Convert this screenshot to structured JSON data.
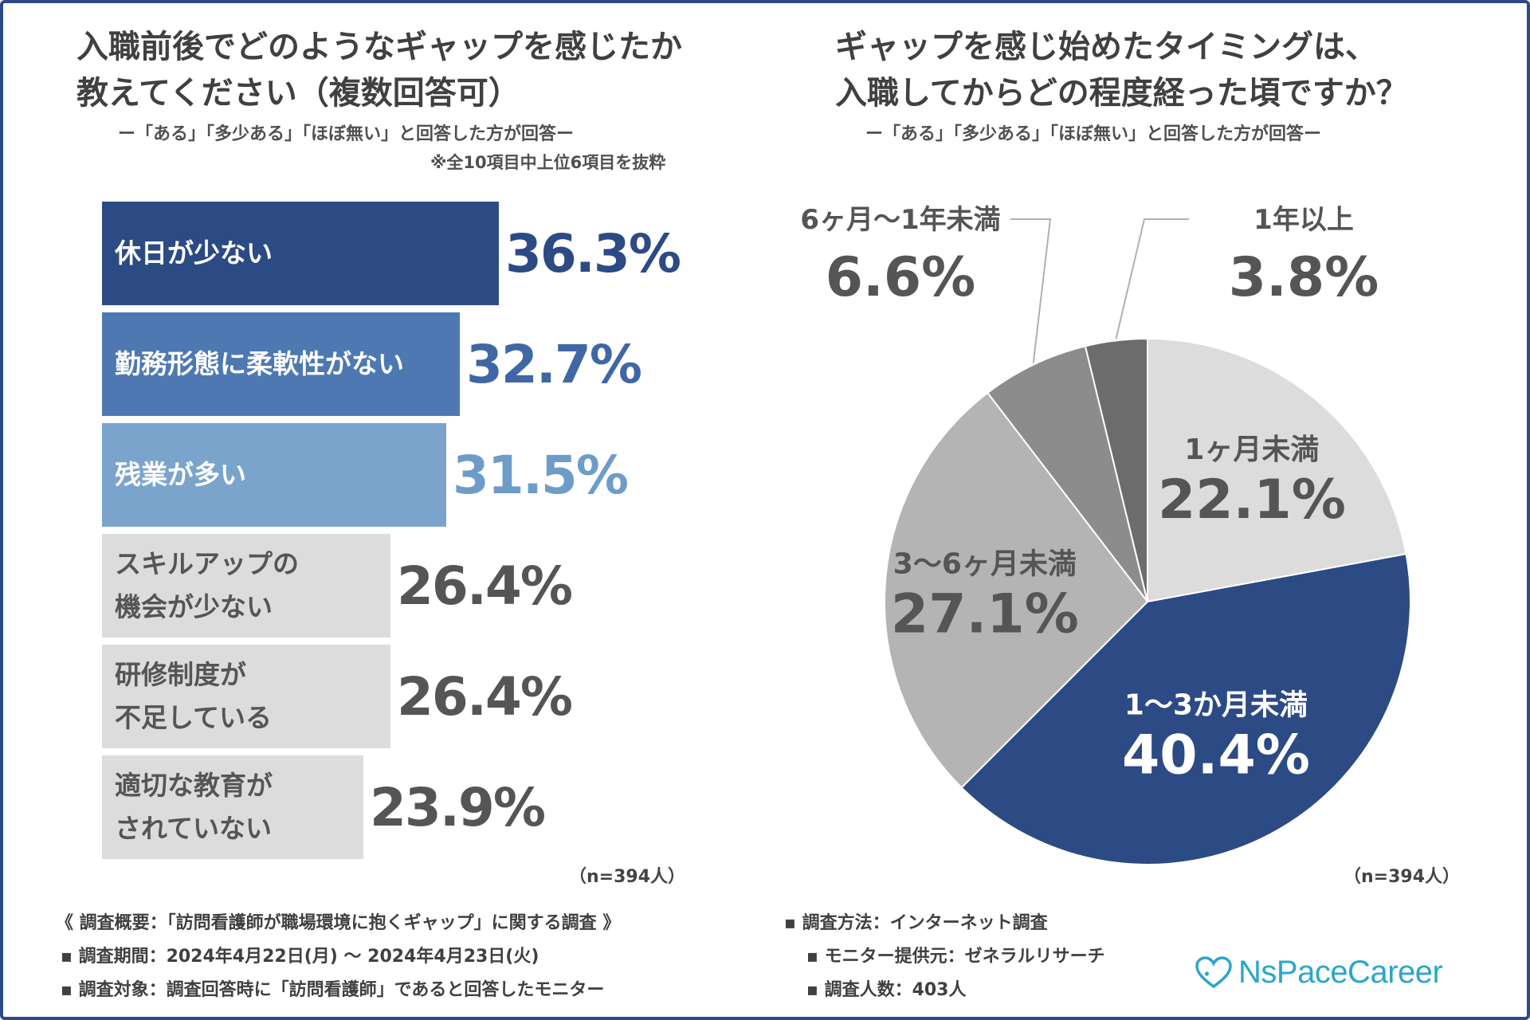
{
  "left": {
    "title_line1": "入職前後でどのようなギャップを感じたか",
    "title_line2": "教えてください（複数回答可）",
    "subtitle": "ー「ある」「多少ある」「ほぼ無い」と回答した方が回答ー",
    "note": "※全10項目中上位6項目を抜粋",
    "n_label": "（n=394人）"
  },
  "right": {
    "title_line1": "ギャップを感じ始めたタイミングは、",
    "title_line2": "入職してからどの程度経った頃ですか？",
    "subtitle": "ー「ある」「多少ある」「ほぼ無い」と回答した方が回答ー",
    "n_label": "（n=394人）"
  },
  "chart_data": [
    {
      "type": "bar",
      "orientation": "horizontal",
      "title": "入職前後でどのようなギャップを感じたか教えてください（複数回答可）",
      "unit": "%",
      "categories": [
        "休日が少ない",
        "勤務形態に柔軟性がない",
        "残業が多い",
        "スキルアップの\n機会が少ない",
        "研修制度が\n不足している",
        "適切な教育が\nされていない"
      ],
      "values": [
        36.3,
        32.7,
        31.5,
        26.4,
        26.4,
        23.9
      ],
      "value_labels": [
        "36.3%",
        "32.7%",
        "31.5%",
        "26.4%",
        "26.4%",
        "23.9%"
      ],
      "bar_colors": [
        "#2c4a84",
        "#4e78b2",
        "#7aa4cc",
        "#dcdcdc",
        "#dcdcdc",
        "#dcdcdc"
      ],
      "label_colors": [
        "#ffffff",
        "#ffffff",
        "#ffffff",
        "#555555",
        "#555555",
        "#555555"
      ],
      "value_colors": [
        "#2c4a84",
        "#3f67a6",
        "#6e9cc8",
        "#555555",
        "#555555",
        "#555555"
      ],
      "xlim": [
        0,
        36.3
      ]
    },
    {
      "type": "pie",
      "title": "ギャップを感じ始めたタイミングは、入職してからどの程度経った頃ですか？",
      "unit": "%",
      "labels": [
        "1ヶ月未満",
        "1〜3か月未満",
        "3〜6ヶ月未満",
        "6ヶ月〜1年未満",
        "1年以上"
      ],
      "values": [
        22.1,
        40.4,
        27.1,
        6.6,
        3.8
      ],
      "value_labels": [
        "22.1%",
        "40.4%",
        "27.1%",
        "6.6%",
        "3.8%"
      ],
      "colors": [
        "#dcdcdc",
        "#2c4a84",
        "#b4b4b4",
        "#8c8c8c",
        "#6c6c6c"
      ],
      "text_colors": [
        "#555555",
        "#ffffff",
        "#555555",
        "#555555",
        "#555555"
      ],
      "start": "12 o'clock, clockwise"
    }
  ],
  "footer": {
    "left": [
      "《 調査概要：「訪問看護師が職場環境に抱くギャップ」に関する調査 》",
      "▪ 調査期間：2024年4月22日(月) 〜 2024年4月23日(火)",
      "▪ 調査対象：調査回答時に「訪問看護師」であると回答したモニター"
    ],
    "right": [
      "▪ 調査方法：インターネット調査",
      "▪ モニター提供元：ゼネラルリサーチ",
      "▪ 調査人数：403人"
    ]
  },
  "logo": {
    "text": "NsPaceCareer",
    "icon": "heart-logo-icon",
    "color": "#2aa7c9"
  }
}
